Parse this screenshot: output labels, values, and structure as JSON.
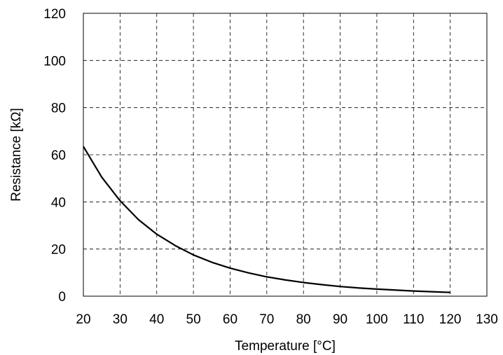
{
  "chart_data": {
    "type": "line",
    "title": "",
    "xlabel": "Temperature [°C]",
    "ylabel": "Resistance [kΩ]",
    "xlim": [
      20,
      130
    ],
    "ylim": [
      0,
      120
    ],
    "xticks": [
      20,
      30,
      40,
      50,
      60,
      70,
      80,
      90,
      100,
      110,
      120,
      130
    ],
    "yticks": [
      0,
      20,
      40,
      60,
      80,
      100,
      120
    ],
    "grid": true,
    "grid_style": "dashed",
    "line_color": "#000000",
    "series": [
      {
        "x": [
          20,
          25,
          30,
          35,
          40,
          45,
          50,
          55,
          60,
          65,
          70,
          75,
          80,
          85,
          90,
          95,
          100,
          105,
          110,
          115,
          120
        ],
        "values": [
          63.5,
          50.5,
          40.5,
          32.5,
          26.3,
          21.5,
          17.5,
          14.4,
          11.9,
          9.9,
          8.2,
          6.9,
          5.8,
          4.9,
          4.1,
          3.5,
          3.0,
          2.6,
          2.2,
          1.9,
          1.6
        ]
      }
    ]
  }
}
